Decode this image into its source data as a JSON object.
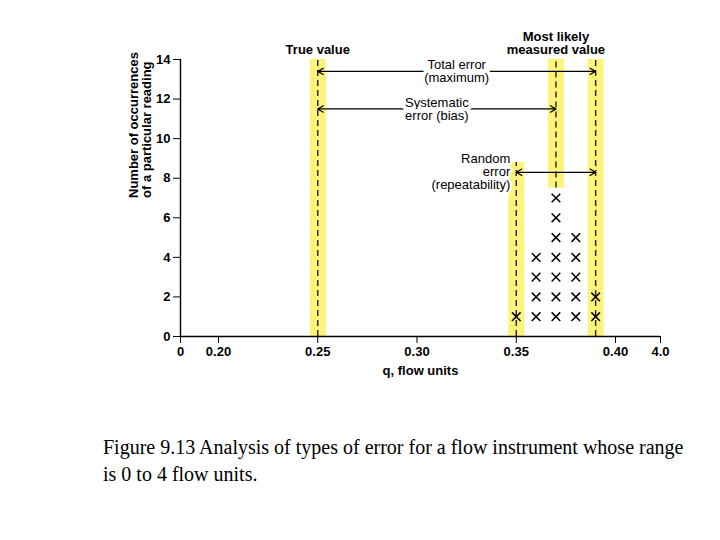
{
  "chart_data": {
    "type": "scatter",
    "marker": "x",
    "color": "#000000",
    "caption": "Figure 9.13 Analysis of types of error for a flow instrument whose range is 0 to 4 flow units.",
    "xlabel": "q, flow units",
    "ylabel": [
      "Number of occurrences",
      "of a particular reading"
    ],
    "x": [
      0.35,
      0.36,
      0.37,
      0.38,
      0.39
    ],
    "values": [
      1,
      4,
      7,
      5,
      2
    ],
    "xlim": [
      0,
      4.0
    ],
    "xticks": [
      0,
      {
        "value": 0.2,
        "label": "0.20"
      },
      {
        "value": 0.25,
        "label": "0.25"
      },
      {
        "value": 0.3,
        "label": "0.30"
      },
      {
        "value": 0.35,
        "label": "0.35"
      },
      {
        "value": 0.4,
        "label": "0.40"
      },
      {
        "value": 4.0,
        "label": "4.0"
      }
    ],
    "ylim": [
      0,
      14
    ],
    "yticks": [
      0,
      2,
      4,
      6,
      8,
      10,
      12,
      14
    ],
    "reference_lines": [
      {
        "x": 0.25,
        "y1": 0,
        "y2": 14,
        "label": "True value",
        "color": "#fbf37a"
      },
      {
        "x": 0.35,
        "y1": 0,
        "y2": 8.8,
        "color": "#fbf37a"
      },
      {
        "x": 0.37,
        "y1": 7.5,
        "y2": 14,
        "label": "Most likely\nmeasured value",
        "color": "#fbf37a"
      },
      {
        "x": 0.39,
        "y1": 0,
        "y2": 14,
        "color": "#fbf37a"
      }
    ],
    "annotations": [
      {
        "text": "Total error\n(maximum)",
        "x1": 0.25,
        "x2": 0.39,
        "y": 13.4
      },
      {
        "text": "Systematic\nerror (bias)",
        "x1": 0.25,
        "x2": 0.37,
        "y": 11.5
      },
      {
        "text": "Random\nerror\n(repeatability)",
        "x1": 0.35,
        "x2": 0.39,
        "y": 8.3
      }
    ]
  }
}
